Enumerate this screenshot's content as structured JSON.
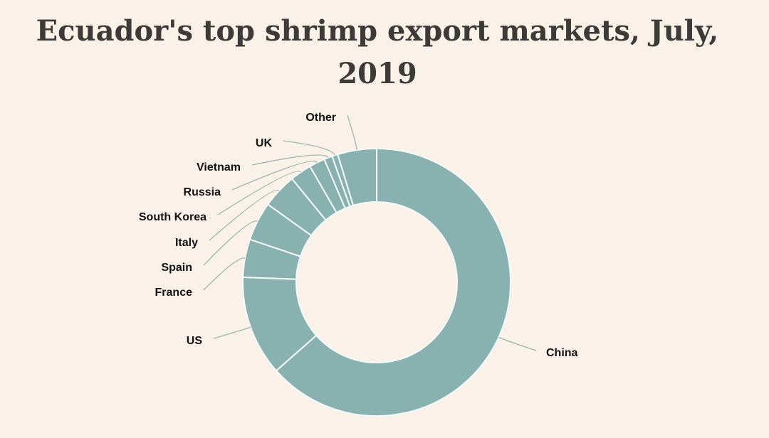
{
  "chart_data": {
    "type": "pie",
    "variant": "donut",
    "title": "Ecuador's top shrimp export markets, July, 2019",
    "units": "percent share (estimated)",
    "slice_color": "#88b1b0",
    "slices": [
      {
        "label": "China",
        "value": 63.5
      },
      {
        "label": "US",
        "value": 12.1
      },
      {
        "label": "France",
        "value": 4.6
      },
      {
        "label": "Spain",
        "value": 4.7
      },
      {
        "label": "Italy",
        "value": 4.2
      },
      {
        "label": "South Korea",
        "value": 2.6
      },
      {
        "label": "Russia",
        "value": 1.9
      },
      {
        "label": "Vietnam",
        "value": 1.0
      },
      {
        "label": "UK",
        "value": 0.7
      },
      {
        "label": "Other",
        "value": 4.7
      }
    ]
  }
}
